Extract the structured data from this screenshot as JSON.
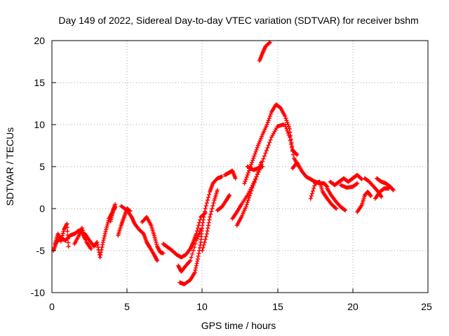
{
  "chart_data": {
    "type": "scatter",
    "title": "Day 149 of 2022, Sidereal Day-to-day VTEC variation (SDTVAR) for receiver bshm",
    "xlabel": "GPS time / hours",
    "ylabel": "SDTVAR / TECUs",
    "xlim": [
      0,
      25
    ],
    "ylim": [
      -10,
      20
    ],
    "xticks": [
      "0",
      "5",
      "10",
      "15",
      "20",
      "25"
    ],
    "yticks": [
      "-10",
      "-5",
      "0",
      "5",
      "10",
      "15",
      "20"
    ],
    "grid": true,
    "marker": "plus",
    "series": [
      {
        "name": "SDTVAR",
        "color": "#ff0000",
        "tracks": [
          [
            [
              0.1,
              -5.0
            ],
            [
              0.3,
              -4.0
            ],
            [
              0.6,
              -3.5
            ],
            [
              0.9,
              -3.8
            ],
            [
              1.2,
              -3.2
            ],
            [
              1.5,
              -3.0
            ],
            [
              1.8,
              -2.6
            ],
            [
              2.0,
              -2.8
            ],
            [
              2.2,
              -3.6
            ]
          ],
          [
            [
              0.2,
              -4.2
            ],
            [
              0.4,
              -3.0
            ],
            [
              0.6,
              -3.9
            ],
            [
              0.8,
              -2.5
            ],
            [
              1.0,
              -1.8
            ],
            [
              1.1,
              -4.5
            ]
          ],
          [
            [
              1.5,
              -4.2
            ],
            [
              1.8,
              -3.2
            ],
            [
              2.0,
              -2.3
            ],
            [
              2.3,
              -4.0
            ],
            [
              2.6,
              -4.8
            ]
          ],
          [
            [
              2.2,
              -3.0
            ],
            [
              2.5,
              -3.8
            ],
            [
              2.8,
              -4.5
            ],
            [
              3.0,
              -4.0
            ],
            [
              3.2,
              -5.8
            ],
            [
              3.4,
              -4.0
            ],
            [
              3.6,
              -2.5
            ],
            [
              3.8,
              -1.2
            ],
            [
              4.0,
              -0.5
            ],
            [
              4.2,
              0.5
            ]
          ],
          [
            [
              3.9,
              -1.5
            ],
            [
              4.1,
              -0.2
            ],
            [
              4.2,
              0.2
            ]
          ],
          [
            [
              4.4,
              -3.2
            ],
            [
              4.6,
              -2.0
            ],
            [
              4.8,
              -1.0
            ],
            [
              5.0,
              0.0
            ],
            [
              5.2,
              -0.3
            ]
          ],
          [
            [
              4.6,
              0.3
            ],
            [
              5.0,
              -0.2
            ],
            [
              5.3,
              -1.0
            ],
            [
              5.5,
              -1.8
            ],
            [
              5.8,
              -2.5
            ],
            [
              6.1,
              -3.0
            ],
            [
              6.3,
              -4.0
            ],
            [
              6.5,
              -4.6
            ],
            [
              6.8,
              -5.5
            ],
            [
              7.0,
              -6.2
            ]
          ],
          [
            [
              6.0,
              -1.6
            ],
            [
              6.3,
              -1.0
            ],
            [
              6.6,
              -2.0
            ],
            [
              6.8,
              -3.2
            ],
            [
              7.0,
              -4.5
            ],
            [
              7.2,
              -5.2
            ],
            [
              7.4,
              -5.3
            ]
          ],
          [
            [
              7.4,
              -4.2
            ],
            [
              7.7,
              -4.6
            ],
            [
              8.0,
              -5.0
            ],
            [
              8.3,
              -5.5
            ],
            [
              8.6,
              -5.8
            ],
            [
              8.9,
              -5.5
            ],
            [
              9.2,
              -4.8
            ],
            [
              9.4,
              -4.0
            ],
            [
              9.6,
              -3.0
            ],
            [
              9.9,
              -1.0
            ],
            [
              10.2,
              -0.5
            ]
          ],
          [
            [
              8.4,
              -6.8
            ],
            [
              8.6,
              -7.5
            ],
            [
              8.9,
              -6.8
            ],
            [
              9.2,
              -6.2
            ],
            [
              9.6,
              -3.8
            ],
            [
              9.9,
              -2.5
            ]
          ],
          [
            [
              8.5,
              -8.8
            ],
            [
              8.8,
              -9.0
            ],
            [
              9.2,
              -8.5
            ],
            [
              9.5,
              -7.6
            ],
            [
              9.7,
              -6.0
            ],
            [
              9.9,
              -4.0
            ],
            [
              10.0,
              -2.0
            ],
            [
              10.2,
              0.0
            ],
            [
              10.5,
              2.0
            ],
            [
              10.7,
              3.0
            ],
            [
              11.0,
              3.6
            ],
            [
              11.3,
              3.8
            ]
          ],
          [
            [
              10.0,
              -5.0
            ],
            [
              10.3,
              -3.0
            ],
            [
              10.5,
              -1.0
            ],
            [
              10.8,
              1.0
            ],
            [
              11.0,
              2.2
            ]
          ],
          [
            [
              11.0,
              -0.2
            ],
            [
              11.3,
              0.2
            ],
            [
              11.6,
              1.0
            ],
            [
              11.8,
              1.6
            ]
          ],
          [
            [
              11.5,
              4.0
            ],
            [
              11.8,
              4.3
            ],
            [
              12.0,
              4.5
            ],
            [
              12.2,
              3.6
            ]
          ],
          [
            [
              12.0,
              -1.2
            ],
            [
              12.3,
              -0.4
            ],
            [
              12.6,
              0.5
            ],
            [
              13.0,
              1.6
            ],
            [
              13.4,
              3.0
            ],
            [
              13.8,
              4.6
            ],
            [
              14.2,
              6.6
            ],
            [
              14.6,
              8.5
            ],
            [
              15.0,
              9.8
            ],
            [
              15.4,
              10.0
            ]
          ],
          [
            [
              12.3,
              -2.0
            ],
            [
              12.6,
              -1.0
            ],
            [
              12.9,
              0.2
            ],
            [
              13.2,
              1.8
            ],
            [
              13.6,
              3.8
            ],
            [
              13.9,
              5.5
            ]
          ],
          [
            [
              12.8,
              3.0
            ],
            [
              13.1,
              4.5
            ],
            [
              13.4,
              6.0
            ],
            [
              13.7,
              7.5
            ],
            [
              14.0,
              8.8
            ],
            [
              14.3,
              10.0
            ],
            [
              14.6,
              11.5
            ],
            [
              14.9,
              12.4
            ],
            [
              15.2,
              12.0
            ],
            [
              15.5,
              11.0
            ],
            [
              15.8,
              9.5
            ],
            [
              16.0,
              7.0
            ],
            [
              16.3,
              6.4
            ]
          ],
          [
            [
              13.0,
              5.0
            ],
            [
              13.4,
              4.6
            ],
            [
              13.7,
              4.8
            ],
            [
              14.0,
              5.0
            ]
          ],
          [
            [
              13.8,
              17.6
            ],
            [
              14.0,
              18.5
            ],
            [
              14.2,
              19.3
            ],
            [
              14.5,
              19.8
            ]
          ],
          [
            [
              15.5,
              10.0
            ],
            [
              15.8,
              8.5
            ],
            [
              16.1,
              6.0
            ],
            [
              16.4,
              5.0
            ]
          ],
          [
            [
              16.0,
              4.8
            ],
            [
              16.3,
              5.5
            ],
            [
              16.6,
              4.5
            ],
            [
              16.9,
              3.8
            ],
            [
              17.2,
              3.5
            ],
            [
              17.5,
              3.2
            ],
            [
              17.8,
              3.0
            ],
            [
              18.1,
              3.0
            ],
            [
              18.3,
              2.6
            ]
          ],
          [
            [
              17.2,
              1.2
            ],
            [
              17.5,
              3.0
            ],
            [
              17.8,
              3.2
            ],
            [
              18.0,
              2.0
            ],
            [
              18.3,
              1.2
            ],
            [
              18.6,
              0.5
            ],
            [
              18.9,
              0.0
            ]
          ],
          [
            [
              18.3,
              2.4
            ],
            [
              18.6,
              1.5
            ],
            [
              18.9,
              0.8
            ],
            [
              19.2,
              0.2
            ],
            [
              19.5,
              -0.2
            ]
          ],
          [
            [
              18.5,
              3.2
            ],
            [
              18.8,
              2.8
            ],
            [
              19.1,
              3.2
            ],
            [
              19.4,
              3.6
            ],
            [
              19.7,
              3.2
            ],
            [
              20.0,
              3.6
            ],
            [
              20.3,
              4.0
            ],
            [
              20.6,
              3.5
            ]
          ],
          [
            [
              19.2,
              2.8
            ],
            [
              19.6,
              2.5
            ],
            [
              20.0,
              2.6
            ],
            [
              20.3,
              3.0
            ]
          ],
          [
            [
              20.3,
              -0.4
            ],
            [
              20.6,
              0.4
            ],
            [
              20.8,
              1.6
            ],
            [
              21.0,
              2.0
            ],
            [
              21.2,
              1.5
            ]
          ],
          [
            [
              20.8,
              3.6
            ],
            [
              21.1,
              3.2
            ],
            [
              21.4,
              2.6
            ],
            [
              21.7,
              2.0
            ],
            [
              21.9,
              1.4
            ]
          ],
          [
            [
              21.6,
              3.6
            ],
            [
              21.9,
              3.2
            ],
            [
              22.2,
              3.0
            ],
            [
              22.5,
              2.6
            ],
            [
              22.7,
              2.2
            ]
          ],
          [
            [
              21.5,
              1.2
            ],
            [
              21.8,
              2.0
            ],
            [
              22.1,
              2.4
            ],
            [
              22.4,
              2.4
            ]
          ]
        ]
      }
    ]
  }
}
